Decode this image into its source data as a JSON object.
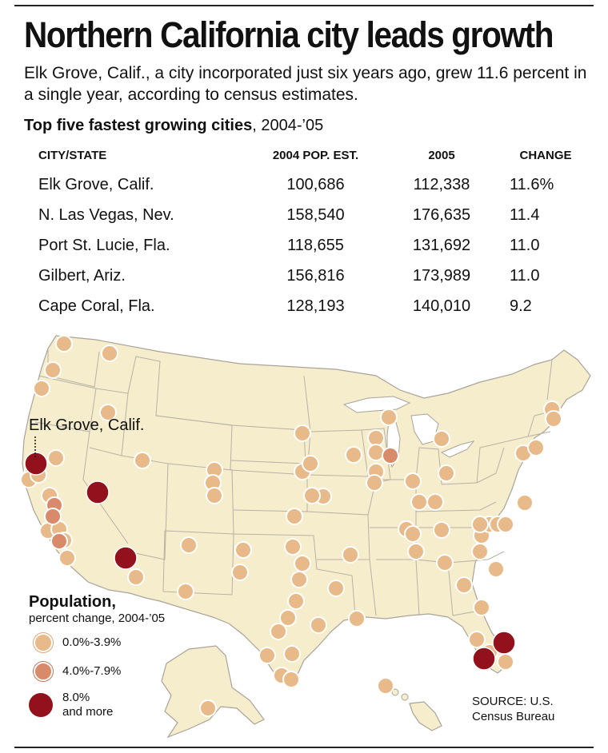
{
  "title": "Northern California city leads growth",
  "subtitle": "Elk Grove, Calif., a city incorporated just six years ago, grew 11.6 percent in a single year, according to census estimates.",
  "table_title_bold": "Top five fastest growing cities",
  "table_title_rest": ", 2004-’05",
  "headers": [
    "CITY/STATE",
    "2004 POP. EST.",
    "2005",
    "CHANGE"
  ],
  "rows": [
    [
      "Elk Grove, Calif.",
      "100,686",
      "112,338",
      "11.6%"
    ],
    [
      "N. Las Vegas, Nev.",
      "158,540",
      "176,635",
      "11.4"
    ],
    [
      "Port St. Lucie, Fla.",
      "118,655",
      "131,692",
      "11.0"
    ],
    [
      "Gilbert, Ariz.",
      "156,816",
      "173,989",
      "11.0"
    ],
    [
      "Cape Coral, Fla.",
      "128,193",
      "140,010",
      "9.2"
    ]
  ],
  "map_label": "Elk Grove, Calif.",
  "legend": {
    "title": "Population,",
    "subtitle": "percent change, 2004-’05",
    "items": [
      "0.0%-3.9%",
      "4.0%-7.9%",
      "8.0%\nand more"
    ]
  },
  "source": "SOURCE: U.S.\nCensus Bureau",
  "colors": {
    "land": "#f6edcc",
    "border": "#b7b1a6",
    "low": "#e8ba8a",
    "mid": "#d88a6a",
    "high": "#93111d"
  },
  "chart_data": {
    "type": "table",
    "title": "Top five fastest growing cities, 2004-’05",
    "columns": [
      "CITY/STATE",
      "2004 POP. EST.",
      "2005",
      "CHANGE"
    ],
    "rows": [
      {
        "city": "Elk Grove, Calif.",
        "pop_2004": 100686,
        "pop_2005": 112338,
        "change_pct": 11.6
      },
      {
        "city": "N. Las Vegas, Nev.",
        "pop_2004": 158540,
        "pop_2005": 176635,
        "change_pct": 11.4
      },
      {
        "city": "Port St. Lucie, Fla.",
        "pop_2004": 118655,
        "pop_2005": 131692,
        "change_pct": 11.0
      },
      {
        "city": "Gilbert, Ariz.",
        "pop_2004": 156816,
        "pop_2005": 173989,
        "change_pct": 11.0
      },
      {
        "city": "Cape Coral, Fla.",
        "pop_2004": 128193,
        "pop_2005": 140010,
        "change_pct": 9.2
      }
    ]
  }
}
